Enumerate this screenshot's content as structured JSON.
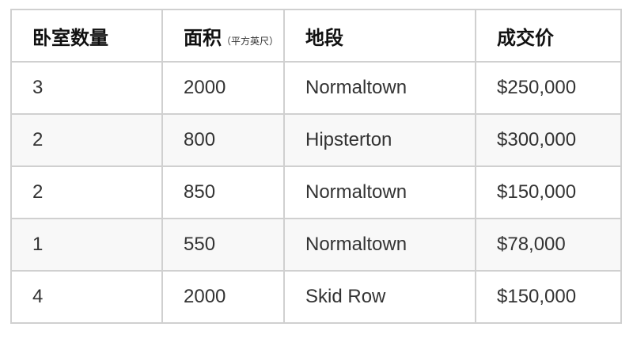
{
  "table": {
    "headers": [
      {
        "label": "卧室数量",
        "sub": ""
      },
      {
        "label": "面积",
        "sub": "（平方英尺）"
      },
      {
        "label": "地段",
        "sub": ""
      },
      {
        "label": "成交价",
        "sub": ""
      }
    ],
    "rows": [
      [
        "3",
        "2000",
        "Normaltown",
        "$250,000"
      ],
      [
        "2",
        "800",
        "Hipsterton",
        "$300,000"
      ],
      [
        "2",
        "850",
        "Normaltown",
        "$150,000"
      ],
      [
        "1",
        "550",
        "Normaltown",
        "$78,000"
      ],
      [
        "4",
        "2000",
        "Skid Row",
        "$150,000"
      ]
    ]
  }
}
